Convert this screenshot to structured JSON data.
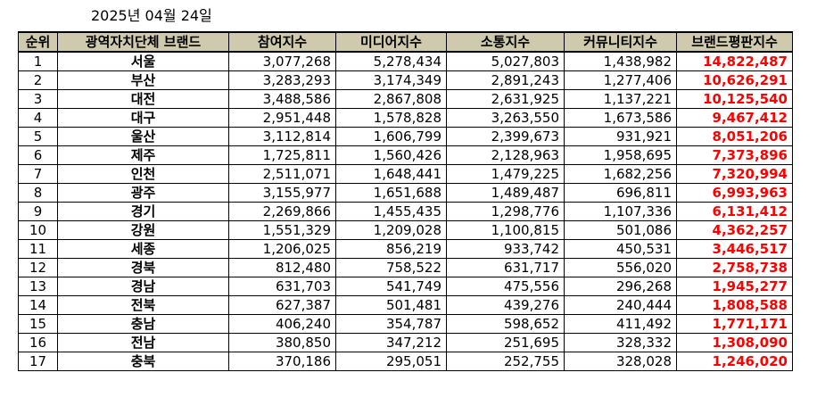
{
  "date": "2025년 04월 24일",
  "columns": [
    "순위",
    "광역자치단체 브랜드",
    "참여지수",
    "미디어지수",
    "소통지수",
    "커뮤니티지수",
    "브랜드평판지수"
  ],
  "rows": [
    {
      "rank": "1",
      "region": "서울",
      "participation": "3,077,268",
      "media": "5,278,434",
      "communication": "5,027,803",
      "community": "1,438,982",
      "brand_score": "14,822,487"
    },
    {
      "rank": "2",
      "region": "부산",
      "participation": "3,283,293",
      "media": "3,174,349",
      "communication": "2,891,243",
      "community": "1,277,406",
      "brand_score": "10,626,291"
    },
    {
      "rank": "3",
      "region": "대전",
      "participation": "3,488,586",
      "media": "2,867,808",
      "communication": "2,631,925",
      "community": "1,137,221",
      "brand_score": "10,125,540"
    },
    {
      "rank": "4",
      "region": "대구",
      "participation": "2,951,448",
      "media": "1,578,828",
      "communication": "3,263,550",
      "community": "1,673,586",
      "brand_score": "9,467,412"
    },
    {
      "rank": "5",
      "region": "울산",
      "participation": "3,112,814",
      "media": "1,606,799",
      "communication": "2,399,673",
      "community": "931,921",
      "brand_score": "8,051,206"
    },
    {
      "rank": "6",
      "region": "제주",
      "participation": "1,725,811",
      "media": "1,560,426",
      "communication": "2,128,963",
      "community": "1,958,695",
      "brand_score": "7,373,896"
    },
    {
      "rank": "7",
      "region": "인천",
      "participation": "2,511,071",
      "media": "1,648,441",
      "communication": "1,479,225",
      "community": "1,682,256",
      "brand_score": "7,320,994"
    },
    {
      "rank": "8",
      "region": "광주",
      "participation": "3,155,977",
      "media": "1,651,688",
      "communication": "1,489,487",
      "community": "696,811",
      "brand_score": "6,993,963"
    },
    {
      "rank": "9",
      "region": "경기",
      "participation": "2,269,866",
      "media": "1,455,435",
      "communication": "1,298,776",
      "community": "1,107,336",
      "brand_score": "6,131,412"
    },
    {
      "rank": "10",
      "region": "강원",
      "participation": "1,551,329",
      "media": "1,209,028",
      "communication": "1,100,815",
      "community": "501,086",
      "brand_score": "4,362,257"
    },
    {
      "rank": "11",
      "region": "세종",
      "participation": "1,206,025",
      "media": "856,219",
      "communication": "933,742",
      "community": "450,531",
      "brand_score": "3,446,517"
    },
    {
      "rank": "12",
      "region": "경북",
      "participation": "812,480",
      "media": "758,522",
      "communication": "631,717",
      "community": "556,020",
      "brand_score": "2,758,738"
    },
    {
      "rank": "13",
      "region": "경남",
      "participation": "631,703",
      "media": "541,749",
      "communication": "475,556",
      "community": "296,268",
      "brand_score": "1,945,277"
    },
    {
      "rank": "14",
      "region": "전북",
      "participation": "627,387",
      "media": "501,481",
      "communication": "439,276",
      "community": "240,444",
      "brand_score": "1,808,588"
    },
    {
      "rank": "15",
      "region": "충남",
      "participation": "406,240",
      "media": "354,787",
      "communication": "598,652",
      "community": "411,492",
      "brand_score": "1,771,171"
    },
    {
      "rank": "16",
      "region": "전남",
      "participation": "380,850",
      "media": "347,212",
      "communication": "251,695",
      "community": "328,332",
      "brand_score": "1,308,090"
    },
    {
      "rank": "17",
      "region": "충북",
      "participation": "370,186",
      "media": "295,051",
      "communication": "252,755",
      "community": "328,028",
      "brand_score": "1,246,020"
    }
  ],
  "colors": {
    "header_bg": "#cfc9ad",
    "score_text": "#ff0000",
    "border": "#000000"
  }
}
